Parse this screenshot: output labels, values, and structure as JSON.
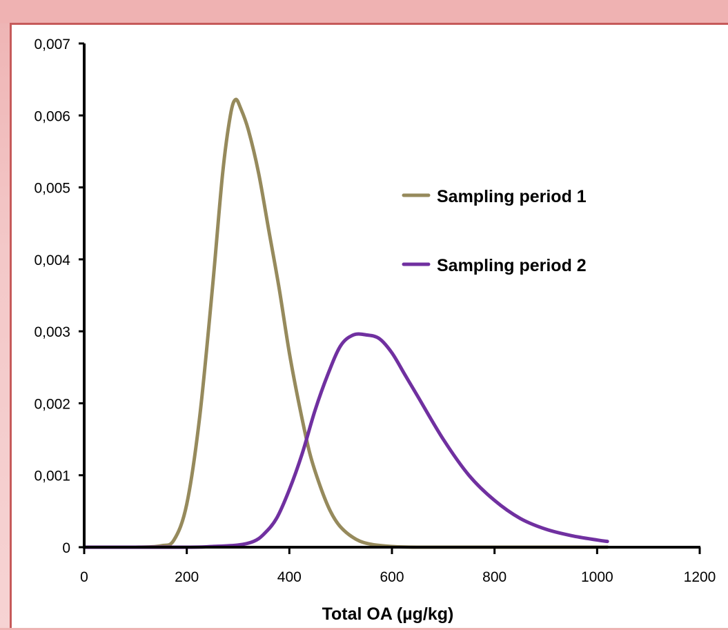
{
  "chart_data": {
    "type": "line",
    "title": "",
    "xlabel": "Total OA (µg/kg)",
    "ylabel": "",
    "xlim": [
      0,
      1200
    ],
    "ylim": [
      0,
      0.007
    ],
    "x_ticks": [
      0,
      200,
      400,
      600,
      800,
      1000,
      1200
    ],
    "x_tick_labels": [
      "0",
      "200",
      "400",
      "600",
      "800",
      "1000",
      "1200"
    ],
    "y_ticks": [
      0,
      0.001,
      0.002,
      0.003,
      0.004,
      0.005,
      0.006,
      0.007
    ],
    "y_tick_labels": [
      "0",
      "0,001",
      "0,002",
      "0,003",
      "0,004",
      "0,005",
      "0,006",
      "0,007"
    ],
    "grid": false,
    "legend_position": "right",
    "series": [
      {
        "name": "Sampling period 1",
        "color": "#968a5c",
        "x": [
          0,
          100,
          150,
          175,
          200,
          225,
          250,
          270,
          285,
          295,
          305,
          320,
          340,
          360,
          380,
          400,
          420,
          440,
          460,
          480,
          500,
          530,
          560,
          600,
          650,
          700,
          800,
          900,
          1000,
          1020
        ],
        "y": [
          0,
          0,
          2e-05,
          0.0001,
          0.0006,
          0.0018,
          0.0036,
          0.0052,
          0.006,
          0.00622,
          0.0061,
          0.0058,
          0.0052,
          0.0044,
          0.0036,
          0.0027,
          0.00195,
          0.0013,
          0.00085,
          0.0005,
          0.00028,
          0.00011,
          4e-05,
          1e-05,
          0,
          0,
          0,
          0,
          0,
          0
        ]
      },
      {
        "name": "Sampling period 2",
        "color": "#7030a0",
        "x": [
          0,
          200,
          250,
          300,
          330,
          350,
          375,
          400,
          425,
          450,
          475,
          500,
          525,
          550,
          575,
          600,
          625,
          650,
          700,
          750,
          800,
          850,
          900,
          950,
          1000,
          1020
        ],
        "y": [
          0,
          0,
          1e-05,
          3e-05,
          8e-05,
          0.00018,
          0.0004,
          0.0008,
          0.0013,
          0.0019,
          0.0024,
          0.0028,
          0.00295,
          0.00295,
          0.0029,
          0.0027,
          0.0024,
          0.0021,
          0.0015,
          0.001,
          0.00065,
          0.0004,
          0.00025,
          0.00016,
          0.0001,
          8e-05
        ]
      }
    ]
  }
}
